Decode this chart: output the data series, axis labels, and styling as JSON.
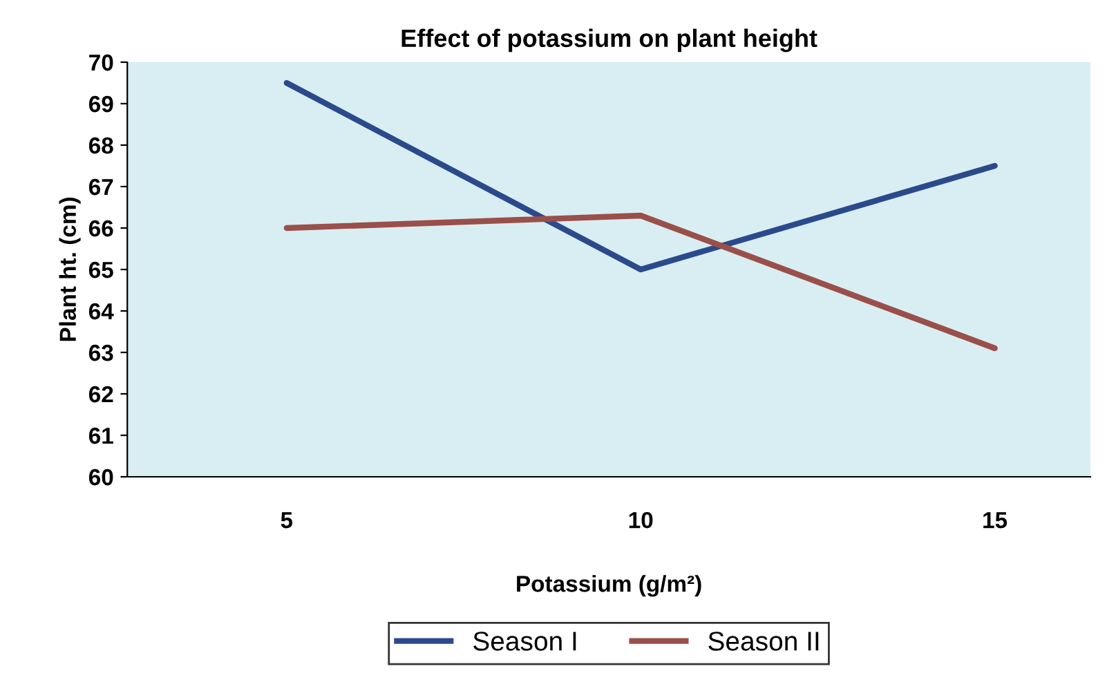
{
  "chart_data": {
    "type": "line",
    "title": "Effect of potassium on plant height",
    "xlabel": "Potassium (g/m²)",
    "ylabel": "Plant ht. (cm)",
    "categories": [
      "5",
      "10",
      "15"
    ],
    "series": [
      {
        "name": "Season I",
        "color": "#2b4a8c",
        "values": [
          69.5,
          65.0,
          67.5
        ]
      },
      {
        "name": "Season II",
        "color": "#9a4f4a",
        "values": [
          66.0,
          66.3,
          63.1
        ]
      }
    ],
    "ylim": [
      60,
      70
    ],
    "yticks": [
      60,
      61,
      62,
      63,
      64,
      65,
      66,
      67,
      68,
      69,
      70
    ],
    "grid": false,
    "legend": "bottom",
    "marker": "none",
    "line_style": "solid"
  }
}
